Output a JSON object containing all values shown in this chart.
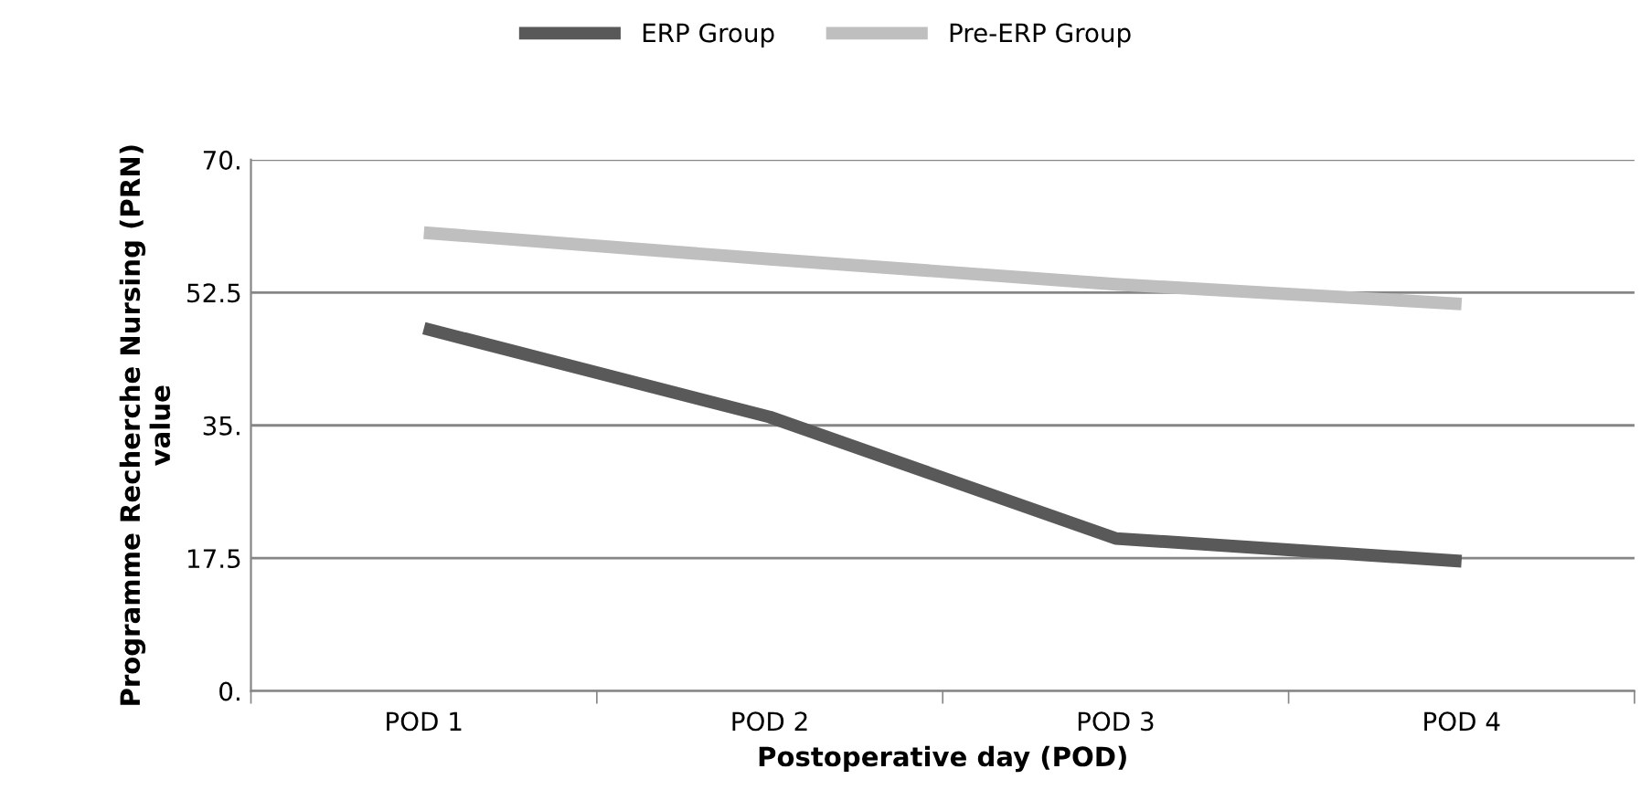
{
  "chart_data": {
    "type": "line",
    "categories": [
      "POD 1",
      "POD 2",
      "POD 3",
      "POD 4"
    ],
    "series": [
      {
        "name": "ERP Group",
        "color": "#595959",
        "values": [
          47.8,
          36.1,
          20.1,
          17.1
        ]
      },
      {
        "name": "Pre-ERP Group",
        "color": "#bfbfbf",
        "values": [
          60.4,
          56.9,
          53.6,
          51.0
        ]
      }
    ],
    "xlabel": "Postoperative day (POD)",
    "ylabel": "Programme Recherche Nursing (PRN)\nvalue",
    "ylim": [
      0,
      70
    ],
    "yticks": [
      {
        "value": 0,
        "label": "0."
      },
      {
        "value": 17.5,
        "label": "17.5"
      },
      {
        "value": 35,
        "label": "35."
      },
      {
        "value": 52.5,
        "label": "52.5"
      },
      {
        "value": 70,
        "label": "70."
      }
    ],
    "grid": "y",
    "legend": "top",
    "marker": "none",
    "line_style": "solid"
  }
}
